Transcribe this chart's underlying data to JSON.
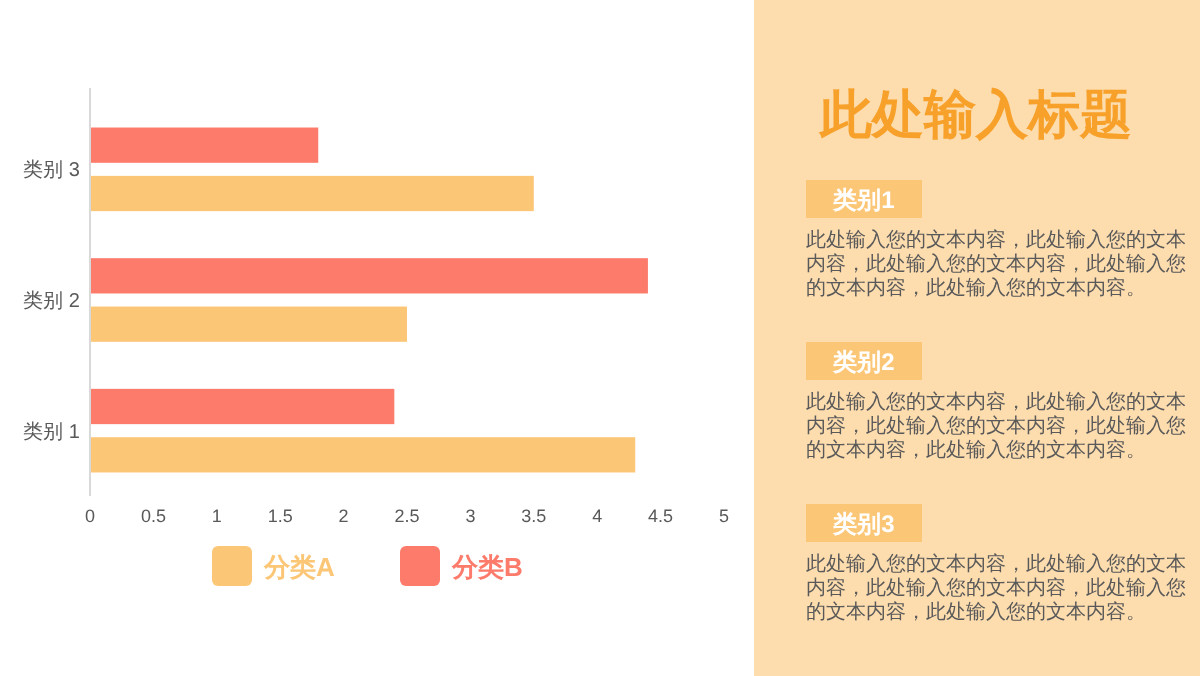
{
  "chart_data": [
    {
      "type": "bar",
      "orientation": "horizontal",
      "categories": [
        "类别 3",
        "类别 2",
        "类别 1"
      ],
      "series": [
        {
          "name": "分类B",
          "color": "#fc7b6b",
          "values": [
            1.8,
            4.4,
            2.4
          ]
        },
        {
          "name": "分类A",
          "color": "#fcc677",
          "values": [
            3.5,
            2.5,
            4.3
          ]
        }
      ],
      "xlim": [
        0,
        5
      ],
      "xticks": [
        0,
        0.5,
        1,
        1.5,
        2,
        2.5,
        3,
        3.5,
        4,
        4.5,
        5
      ],
      "grid": false,
      "legend": "bottom"
    },
    {
      "type": "other",
      "title": "此处输入标题",
      "annotations": [
        "类别1",
        "此处输入您的文本内容，此处输入您的文本内容，此处输入您的文本内容，此处输入您的文本内容，此处输入您的文本内容。",
        "类别2",
        "此处输入您的文本内容，此处输入您的文本内容，此处输入您的文本内容，此处输入您的文本内容，此处输入您的文本内容。",
        "类别3",
        "此处输入您的文本内容，此处输入您的文本内容，此处输入您的文本内容，此处输入您的文本内容，此处输入您的文本内容。"
      ]
    }
  ]
}
